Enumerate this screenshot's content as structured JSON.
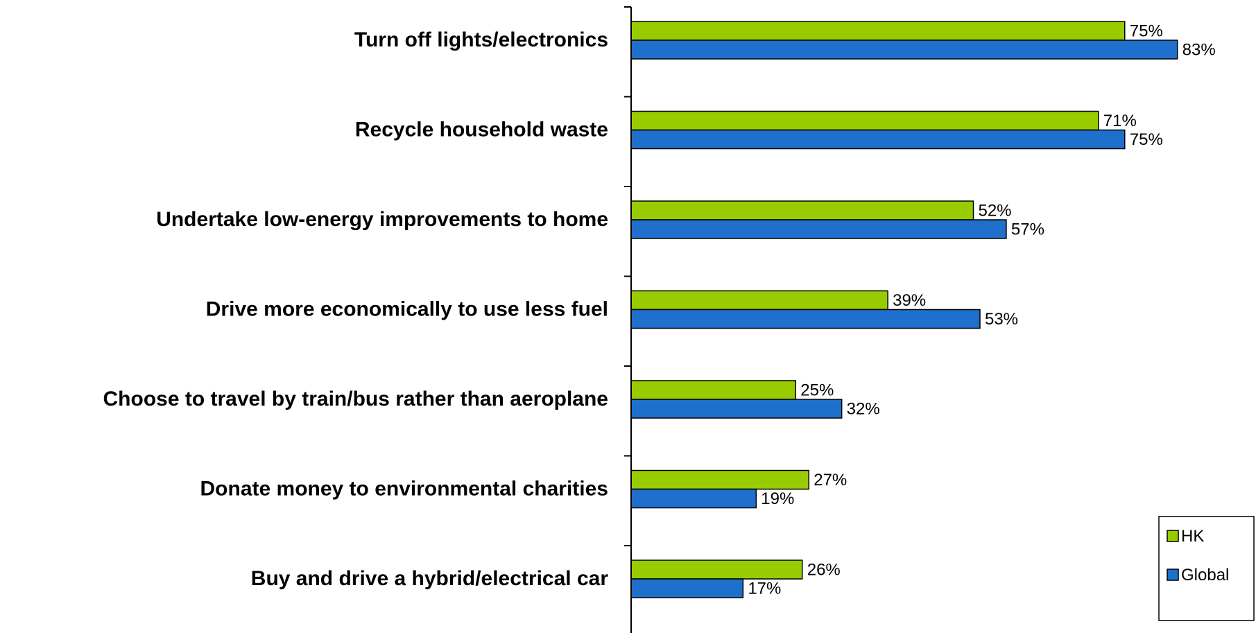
{
  "chart_data": {
    "type": "bar",
    "orientation": "horizontal",
    "categories": [
      "Turn off lights/electronics",
      "Recycle household waste",
      "Undertake low-energy improvements to home",
      "Drive more economically to use less fuel",
      "Choose to travel by train/bus rather than aeroplane",
      "Donate money to environmental charities",
      "Buy and drive a hybrid/electrical car"
    ],
    "series": [
      {
        "name": "HK",
        "color": "#99cc00",
        "values": [
          75,
          71,
          52,
          39,
          25,
          27,
          26
        ]
      },
      {
        "name": "Global",
        "color": "#1f6fcc",
        "values": [
          83,
          75,
          57,
          53,
          32,
          19,
          17
        ]
      }
    ],
    "value_suffix": "%",
    "xlim": [
      0,
      100
    ],
    "grid": false,
    "legend_position": "bottom-right",
    "title": "",
    "xlabel": "",
    "ylabel": ""
  }
}
